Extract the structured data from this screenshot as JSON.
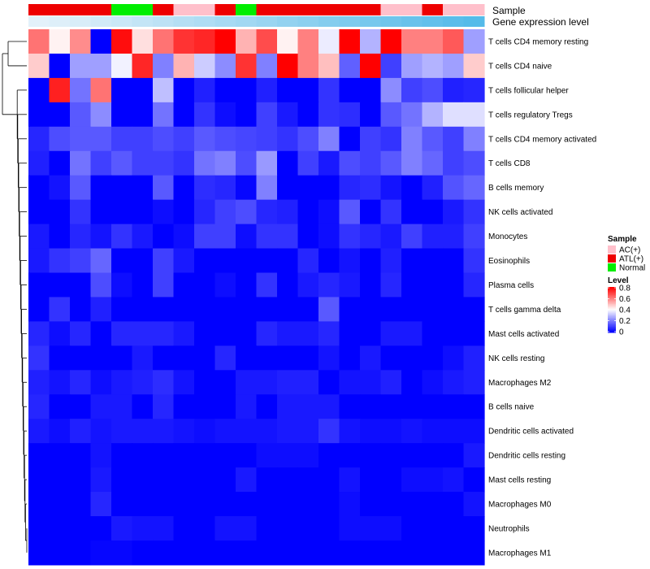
{
  "chart_data": {
    "type": "heatmap",
    "annotation_titles": [
      "Sample",
      "Gene expression level"
    ],
    "sample_annotation": [
      "ATL(+)",
      "ATL(+)",
      "ATL(+)",
      "ATL(+)",
      "Normal",
      "Normal",
      "ATL(+)",
      "AC(+)",
      "AC(+)",
      "ATL(+)",
      "Normal",
      "ATL(+)",
      "ATL(+)",
      "ATL(+)",
      "ATL(+)",
      "ATL(+)",
      "ATL(+)",
      "AC(+)",
      "AC(+)",
      "ATL(+)",
      "AC(+)",
      "AC(+)"
    ],
    "gene_expression_level": [
      0.02,
      0.05,
      0.09,
      0.14,
      0.18,
      0.23,
      0.27,
      0.32,
      0.36,
      0.41,
      0.45,
      0.5,
      0.55,
      0.59,
      0.64,
      0.68,
      0.73,
      0.77,
      0.82,
      0.86,
      0.91,
      0.95
    ],
    "rows": [
      "T cells CD4 memory resting",
      "T cells CD4 naive",
      "T cells follicular helper",
      "T cells regulatory  Tregs",
      "T cells CD4 memory activated",
      "T cells CD8",
      "B cells memory",
      "NK cells activated",
      "Monocytes",
      "Eosinophils",
      "Plasma cells",
      "T cells gamma delta",
      "Mast cells activated",
      "NK cells resting",
      "Macrophages M2",
      "B cells naive",
      "Dendritic cells activated",
      "Dendritic cells resting",
      "Mast cells resting",
      "Macrophages M0",
      "Neutrophils",
      "Macrophages M1"
    ],
    "values": [
      [
        0.62,
        0.42,
        0.58,
        0.0,
        0.78,
        0.45,
        0.62,
        0.72,
        0.74,
        0.8,
        0.52,
        0.68,
        0.42,
        0.6,
        0.37,
        0.8,
        0.28,
        0.82,
        0.6,
        0.6,
        0.66,
        0.25
      ],
      [
        0.48,
        0.0,
        0.25,
        0.25,
        0.38,
        0.74,
        0.2,
        0.52,
        0.32,
        0.22,
        0.72,
        0.2,
        0.8,
        0.6,
        0.5,
        0.15,
        0.8,
        0.1,
        0.25,
        0.28,
        0.25,
        0.48
      ],
      [
        0.0,
        0.75,
        0.18,
        0.62,
        0.0,
        0.0,
        0.3,
        0.0,
        0.05,
        0.0,
        0.0,
        0.05,
        0.0,
        0.0,
        0.08,
        0.0,
        0.0,
        0.22,
        0.1,
        0.12,
        0.05,
        0.06
      ],
      [
        0.0,
        0.0,
        0.14,
        0.22,
        0.0,
        0.0,
        0.18,
        0.0,
        0.08,
        0.02,
        0.0,
        0.1,
        0.04,
        0.0,
        0.08,
        0.07,
        0.0,
        0.14,
        0.18,
        0.28,
        0.35,
        0.35
      ],
      [
        0.06,
        0.12,
        0.14,
        0.14,
        0.1,
        0.1,
        0.12,
        0.1,
        0.14,
        0.12,
        0.11,
        0.1,
        0.08,
        0.12,
        0.2,
        0.0,
        0.1,
        0.08,
        0.2,
        0.14,
        0.1,
        0.2
      ],
      [
        0.05,
        0.0,
        0.18,
        0.1,
        0.14,
        0.1,
        0.1,
        0.08,
        0.18,
        0.2,
        0.12,
        0.24,
        0.0,
        0.1,
        0.04,
        0.12,
        0.1,
        0.14,
        0.2,
        0.16,
        0.1,
        0.12
      ],
      [
        0.0,
        0.03,
        0.14,
        0.0,
        0.0,
        0.0,
        0.14,
        0.0,
        0.07,
        0.06,
        0.01,
        0.2,
        0.0,
        0.0,
        0.0,
        0.06,
        0.07,
        0.03,
        0.0,
        0.05,
        0.13,
        0.16
      ],
      [
        0.0,
        0.0,
        0.08,
        0.0,
        0.0,
        0.0,
        0.02,
        0.0,
        0.06,
        0.1,
        0.12,
        0.06,
        0.05,
        0.0,
        0.02,
        0.14,
        0.0,
        0.08,
        0.0,
        0.0,
        0.04,
        0.08
      ],
      [
        0.04,
        0.0,
        0.06,
        0.03,
        0.08,
        0.04,
        0.0,
        0.02,
        0.1,
        0.1,
        0.02,
        0.08,
        0.08,
        0.0,
        0.02,
        0.08,
        0.06,
        0.04,
        0.1,
        0.05,
        0.05,
        0.1
      ],
      [
        0.04,
        0.08,
        0.1,
        0.16,
        0.0,
        0.0,
        0.1,
        0.04,
        0.0,
        0.0,
        0.0,
        0.0,
        0.0,
        0.06,
        0.0,
        0.03,
        0.0,
        0.05,
        0.0,
        0.0,
        0.0,
        0.08
      ],
      [
        0.0,
        0.0,
        0.0,
        0.12,
        0.02,
        0.0,
        0.1,
        0.0,
        0.0,
        0.02,
        0.0,
        0.08,
        0.0,
        0.04,
        0.06,
        0.04,
        0.0,
        0.06,
        0.0,
        0.0,
        0.0,
        0.06
      ],
      [
        0.0,
        0.08,
        0.0,
        0.05,
        0.0,
        0.0,
        0.0,
        0.0,
        0.0,
        0.0,
        0.0,
        0.0,
        0.0,
        0.0,
        0.14,
        0.0,
        0.0,
        0.0,
        0.0,
        0.0,
        0.0,
        0.0
      ],
      [
        0.06,
        0.02,
        0.06,
        0.0,
        0.06,
        0.06,
        0.06,
        0.04,
        0.0,
        0.0,
        0.0,
        0.06,
        0.04,
        0.04,
        0.06,
        0.0,
        0.0,
        0.04,
        0.04,
        0.0,
        0.0,
        0.0
      ],
      [
        0.08,
        0.0,
        0.0,
        0.0,
        0.0,
        0.04,
        0.0,
        0.0,
        0.0,
        0.06,
        0.0,
        0.0,
        0.0,
        0.0,
        0.03,
        0.0,
        0.04,
        0.0,
        0.0,
        0.0,
        0.02,
        0.05
      ],
      [
        0.05,
        0.03,
        0.06,
        0.02,
        0.04,
        0.05,
        0.07,
        0.03,
        0.0,
        0.0,
        0.04,
        0.04,
        0.05,
        0.05,
        0.0,
        0.03,
        0.03,
        0.05,
        0.0,
        0.02,
        0.04,
        0.05
      ],
      [
        0.06,
        0.0,
        0.0,
        0.04,
        0.04,
        0.0,
        0.06,
        0.0,
        0.0,
        0.0,
        0.04,
        0.0,
        0.04,
        0.04,
        0.04,
        0.0,
        0.0,
        0.0,
        0.0,
        0.0,
        0.0,
        0.0
      ],
      [
        0.04,
        0.02,
        0.05,
        0.03,
        0.04,
        0.04,
        0.04,
        0.03,
        0.02,
        0.03,
        0.03,
        0.03,
        0.04,
        0.04,
        0.08,
        0.03,
        0.02,
        0.02,
        0.03,
        0.02,
        0.02,
        0.02
      ],
      [
        0.0,
        0.0,
        0.0,
        0.03,
        0.0,
        0.0,
        0.0,
        0.0,
        0.0,
        0.0,
        0.0,
        0.02,
        0.02,
        0.02,
        0.0,
        0.0,
        0.0,
        0.0,
        0.0,
        0.0,
        0.0,
        0.04
      ],
      [
        0.0,
        0.0,
        0.0,
        0.04,
        0.0,
        0.0,
        0.0,
        0.0,
        0.0,
        0.0,
        0.04,
        0.0,
        0.0,
        0.0,
        0.0,
        0.03,
        0.0,
        0.0,
        0.02,
        0.02,
        0.03,
        0.0
      ],
      [
        0.0,
        0.0,
        0.0,
        0.06,
        0.0,
        0.0,
        0.0,
        0.0,
        0.0,
        0.0,
        0.0,
        0.0,
        0.0,
        0.0,
        0.0,
        0.02,
        0.0,
        0.0,
        0.0,
        0.0,
        0.0,
        0.03
      ],
      [
        0.0,
        0.0,
        0.0,
        0.0,
        0.04,
        0.03,
        0.03,
        0.0,
        0.0,
        0.03,
        0.03,
        0.0,
        0.0,
        0.0,
        0.0,
        0.02,
        0.02,
        0.02,
        0.0,
        0.0,
        0.0,
        0.0
      ],
      [
        0.0,
        0.0,
        0.0,
        0.01,
        0.01,
        0.0,
        0.0,
        0.0,
        0.0,
        0.0,
        0.0,
        0.0,
        0.0,
        0.0,
        0.0,
        0.0,
        0.0,
        0.0,
        0.0,
        0.0,
        0.0,
        0.0
      ]
    ],
    "color_scale": {
      "min": 0,
      "mid": 0.4,
      "max": 0.8,
      "low_color": "#0000ff",
      "mid_color": "#ffffff",
      "high_color": "#ff0000"
    },
    "legend_sample": {
      "title": "Sample",
      "entries": [
        {
          "label": "AC(+)",
          "color": "#ffc0cb"
        },
        {
          "label": "ATL(+)",
          "color": "#ee0000"
        },
        {
          "label": "Normal",
          "color": "#00ee00"
        }
      ]
    },
    "legend_level": {
      "title": "Level",
      "ticks": [
        "0.8",
        "0.6",
        "0.4",
        "0.2",
        "0"
      ]
    },
    "gene_expression_colors": {
      "low": "#e6f2fa",
      "high": "#4db8e8"
    },
    "row_dendrogram": true
  }
}
